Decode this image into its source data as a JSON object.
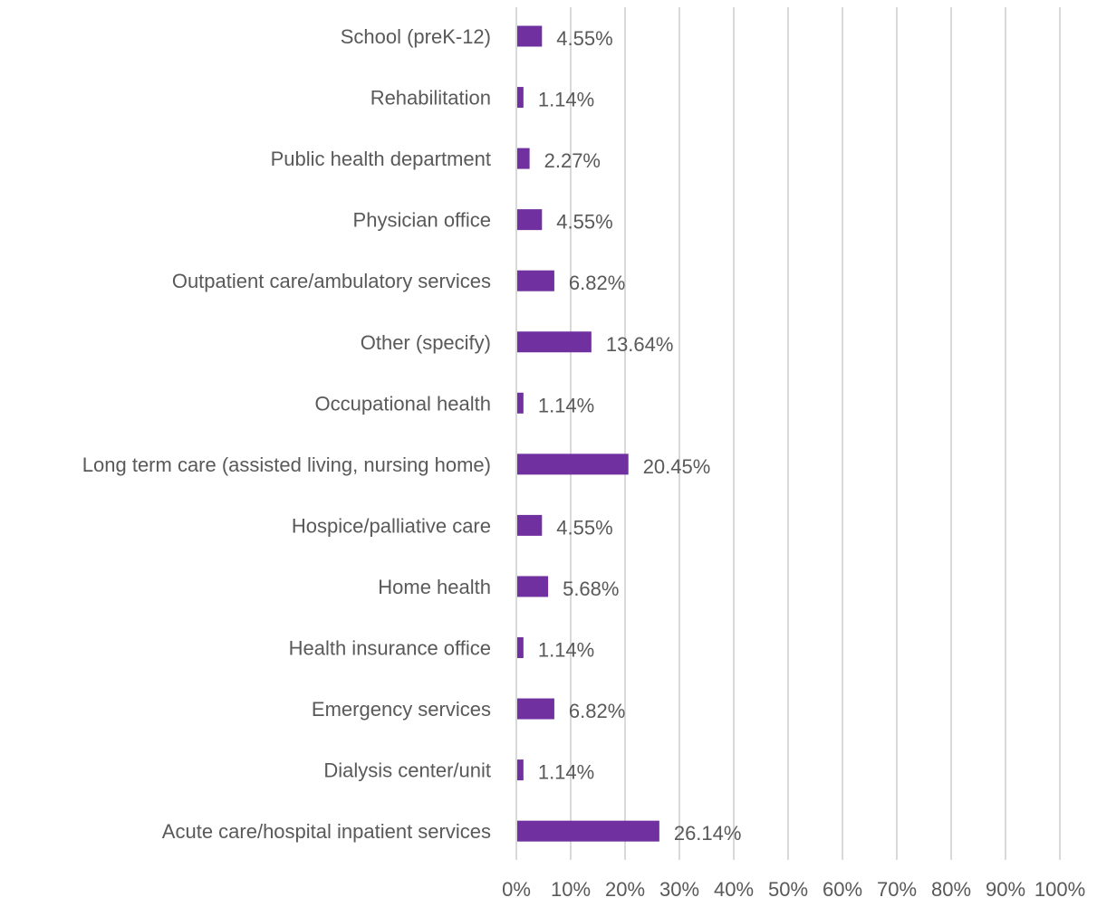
{
  "chart_data": {
    "type": "bar",
    "orientation": "horizontal",
    "categories": [
      "School (preK-12)",
      "Rehabilitation",
      "Public health department",
      "Physician office",
      "Outpatient care/ambulatory services",
      "Other (specify)",
      "Occupational health",
      "Long term care (assisted living, nursing home)",
      "Hospice/palliative care",
      "Home health",
      "Health insurance office",
      "Emergency services",
      "Dialysis center/unit",
      "Acute care/hospital inpatient services"
    ],
    "values": [
      4.55,
      1.14,
      2.27,
      4.55,
      6.82,
      13.64,
      1.14,
      20.45,
      4.55,
      5.68,
      1.14,
      6.82,
      1.14,
      26.14
    ],
    "value_labels": [
      "4.55%",
      "1.14%",
      "2.27%",
      "4.55%",
      "6.82%",
      "13.64%",
      "1.14%",
      "20.45%",
      "4.55%",
      "5.68%",
      "1.14%",
      "6.82%",
      "1.14%",
      "26.14%"
    ],
    "xlim": [
      0,
      100
    ],
    "x_ticks": [
      "0%",
      "10%",
      "20%",
      "30%",
      "40%",
      "50%",
      "60%",
      "70%",
      "80%",
      "90%",
      "100%"
    ],
    "grid": "vertical",
    "legend": "none",
    "bar_color": "#7030a0",
    "grid_color": "#d9d9d9",
    "text_color": "#595959"
  }
}
